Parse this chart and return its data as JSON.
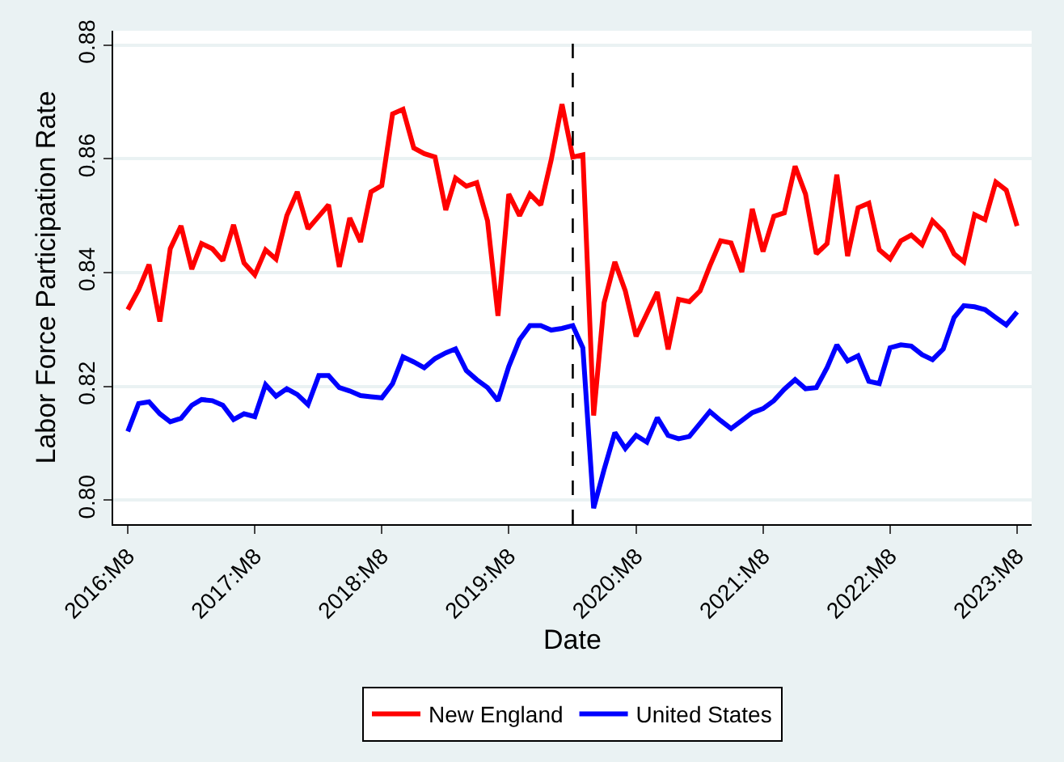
{
  "chart_data": {
    "type": "line",
    "xlabel": "Date",
    "ylabel": "Labor Force Participation Rate",
    "x": [
      "2016-08",
      "2016-09",
      "2016-10",
      "2016-11",
      "2016-12",
      "2017-01",
      "2017-02",
      "2017-03",
      "2017-04",
      "2017-05",
      "2017-06",
      "2017-07",
      "2017-08",
      "2017-09",
      "2017-10",
      "2017-11",
      "2017-12",
      "2018-01",
      "2018-02",
      "2018-03",
      "2018-04",
      "2018-05",
      "2018-06",
      "2018-07",
      "2018-08",
      "2018-09",
      "2018-10",
      "2018-11",
      "2018-12",
      "2019-01",
      "2019-02",
      "2019-03",
      "2019-04",
      "2019-05",
      "2019-06",
      "2019-07",
      "2019-08",
      "2019-09",
      "2019-10",
      "2019-11",
      "2019-12",
      "2020-01",
      "2020-02",
      "2020-03",
      "2020-04",
      "2020-05",
      "2020-06",
      "2020-07",
      "2020-08",
      "2020-09",
      "2020-10",
      "2020-11",
      "2020-12",
      "2021-01",
      "2021-02",
      "2021-03",
      "2021-04",
      "2021-05",
      "2021-06",
      "2021-07",
      "2021-08",
      "2021-09",
      "2021-10",
      "2021-11",
      "2021-12",
      "2022-01",
      "2022-02",
      "2022-03",
      "2022-04",
      "2022-05",
      "2022-06",
      "2022-07",
      "2022-08",
      "2022-09",
      "2022-10",
      "2022-11",
      "2022-12",
      "2023-01",
      "2023-02",
      "2023-03",
      "2023-04",
      "2023-05",
      "2023-06",
      "2023-07",
      "2023-08"
    ],
    "series": [
      {
        "name": "New England",
        "color": "#ff0000",
        "values": [
          0.8335,
          0.837,
          0.8414,
          0.8314,
          0.8442,
          0.8482,
          0.8406,
          0.8451,
          0.8442,
          0.8421,
          0.8484,
          0.8417,
          0.8396,
          0.844,
          0.8424,
          0.85,
          0.8542,
          0.8477,
          0.8499,
          0.8519,
          0.841,
          0.8496,
          0.8454,
          0.8542,
          0.8553,
          0.8679,
          0.8687,
          0.8619,
          0.8609,
          0.8603,
          0.851,
          0.8566,
          0.8552,
          0.8558,
          0.8491,
          0.8324,
          0.8538,
          0.85,
          0.8538,
          0.8519,
          0.8598,
          0.8696,
          0.8603,
          0.8607,
          0.8149,
          0.8347,
          0.8419,
          0.8368,
          0.8288,
          0.8328,
          0.8366,
          0.8265,
          0.8353,
          0.8349,
          0.8368,
          0.8412,
          0.8456,
          0.8452,
          0.8401,
          0.8512,
          0.8437,
          0.8499,
          0.8505,
          0.8587,
          0.8538,
          0.8433,
          0.8451,
          0.8572,
          0.8429,
          0.8514,
          0.8522,
          0.844,
          0.8424,
          0.8456,
          0.8466,
          0.8449,
          0.8491,
          0.8472,
          0.8433,
          0.8419,
          0.8502,
          0.8493,
          0.8559,
          0.8545,
          0.8482
        ]
      },
      {
        "name": "United States",
        "color": "#0000ff",
        "values": [
          0.8121,
          0.817,
          0.8173,
          0.8152,
          0.8138,
          0.8144,
          0.8167,
          0.8177,
          0.8175,
          0.8167,
          0.8142,
          0.8152,
          0.8147,
          0.8203,
          0.8183,
          0.8196,
          0.8186,
          0.8168,
          0.8219,
          0.8219,
          0.8198,
          0.8192,
          0.8184,
          0.8182,
          0.818,
          0.8205,
          0.8252,
          0.8243,
          0.8233,
          0.8249,
          0.8259,
          0.8266,
          0.8228,
          0.8212,
          0.8198,
          0.8175,
          0.8235,
          0.8282,
          0.8307,
          0.8307,
          0.8299,
          0.8302,
          0.8307,
          0.8268,
          0.7986,
          0.8054,
          0.8119,
          0.8091,
          0.8114,
          0.8102,
          0.8145,
          0.8114,
          0.8108,
          0.8112,
          0.8135,
          0.8156,
          0.814,
          0.8126,
          0.814,
          0.8154,
          0.8161,
          0.8175,
          0.8195,
          0.8212,
          0.8196,
          0.8198,
          0.8233,
          0.8273,
          0.8245,
          0.8254,
          0.8209,
          0.8205,
          0.8268,
          0.8273,
          0.8271,
          0.8256,
          0.8247,
          0.8266,
          0.8321,
          0.8342,
          0.834,
          0.8335,
          0.8321,
          0.8308,
          0.8331
        ]
      }
    ],
    "xlim": [
      "2016-06-20",
      "2023-09-12"
    ],
    "xticks": [
      {
        "value": "2016-08",
        "label": "2016:M8"
      },
      {
        "value": "2017-08",
        "label": "2017:M8"
      },
      {
        "value": "2018-08",
        "label": "2018:M8"
      },
      {
        "value": "2019-08",
        "label": "2019:M8"
      },
      {
        "value": "2020-08",
        "label": "2020:M8"
      },
      {
        "value": "2021-08",
        "label": "2021:M8"
      },
      {
        "value": "2022-08",
        "label": "2022:M8"
      },
      {
        "value": "2023-08",
        "label": "2023:M8"
      }
    ],
    "ylim": [
      0.7958,
      0.8825
    ],
    "yticks": [
      {
        "value": 0.8,
        "label": "0.80"
      },
      {
        "value": 0.82,
        "label": "0.82"
      },
      {
        "value": 0.84,
        "label": "0.84"
      },
      {
        "value": 0.86,
        "label": "0.86"
      },
      {
        "value": 0.88,
        "label": "0.88"
      }
    ],
    "ref_lines": [
      {
        "axis": "x",
        "value": "2020-02",
        "color": "#000000",
        "line_style": "dashed"
      }
    ],
    "grid": "y",
    "legend": "bottom",
    "line_style": "solid",
    "marker": "none"
  }
}
